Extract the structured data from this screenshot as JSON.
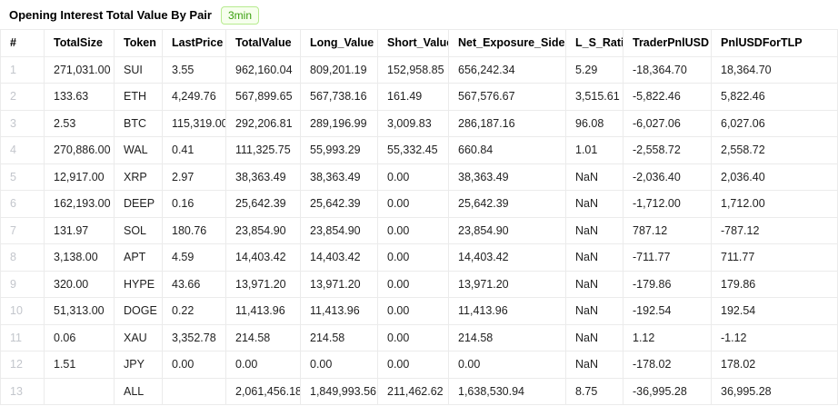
{
  "header": {
    "title": "Opening Interest Total Value By Pair",
    "badge": "3min"
  },
  "colors": {
    "badge_text": "#389e0d",
    "badge_background": "#f6ffed",
    "badge_border": "#b7eb8f",
    "table_border": "#ebebeb",
    "row_number_text": "#c3c6cc"
  },
  "chart_data": {
    "type": "table",
    "title": "Opening Interest Total Value By Pair",
    "interval_badge": "3min",
    "columns": [
      "#",
      "TotalSize",
      "Token",
      "LastPrice",
      "TotalValue",
      "Long_Value",
      "Short_Value",
      "Net_Exposure_Side",
      "L_S_Ratio",
      "TraderPnlUSD",
      "PnlUSDForTLP"
    ],
    "rows": [
      [
        "1",
        "271,031.00",
        "SUI",
        "3.55",
        "962,160.04",
        "809,201.19",
        "152,958.85",
        "656,242.34",
        "5.29",
        "-18,364.70",
        "18,364.70"
      ],
      [
        "2",
        "133.63",
        "ETH",
        "4,249.76",
        "567,899.65",
        "567,738.16",
        "161.49",
        "567,576.67",
        "3,515.61",
        "-5,822.46",
        "5,822.46"
      ],
      [
        "3",
        "2.53",
        "BTC",
        "115,319.00",
        "292,206.81",
        "289,196.99",
        "3,009.83",
        "286,187.16",
        "96.08",
        "-6,027.06",
        "6,027.06"
      ],
      [
        "4",
        "270,886.00",
        "WAL",
        "0.41",
        "111,325.75",
        "55,993.29",
        "55,332.45",
        "660.84",
        "1.01",
        "-2,558.72",
        "2,558.72"
      ],
      [
        "5",
        "12,917.00",
        "XRP",
        "2.97",
        "38,363.49",
        "38,363.49",
        "0.00",
        "38,363.49",
        "NaN",
        "-2,036.40",
        "2,036.40"
      ],
      [
        "6",
        "162,193.00",
        "DEEP",
        "0.16",
        "25,642.39",
        "25,642.39",
        "0.00",
        "25,642.39",
        "NaN",
        "-1,712.00",
        "1,712.00"
      ],
      [
        "7",
        "131.97",
        "SOL",
        "180.76",
        "23,854.90",
        "23,854.90",
        "0.00",
        "23,854.90",
        "NaN",
        "787.12",
        "-787.12"
      ],
      [
        "8",
        "3,138.00",
        "APT",
        "4.59",
        "14,403.42",
        "14,403.42",
        "0.00",
        "14,403.42",
        "NaN",
        "-711.77",
        "711.77"
      ],
      [
        "9",
        "320.00",
        "HYPE",
        "43.66",
        "13,971.20",
        "13,971.20",
        "0.00",
        "13,971.20",
        "NaN",
        "-179.86",
        "179.86"
      ],
      [
        "10",
        "51,313.00",
        "DOGE",
        "0.22",
        "11,413.96",
        "11,413.96",
        "0.00",
        "11,413.96",
        "NaN",
        "-192.54",
        "192.54"
      ],
      [
        "11",
        "0.06",
        "XAU",
        "3,352.78",
        "214.58",
        "214.58",
        "0.00",
        "214.58",
        "NaN",
        "1.12",
        "-1.12"
      ],
      [
        "12",
        "1.51",
        "JPY",
        "0.00",
        "0.00",
        "0.00",
        "0.00",
        "0.00",
        "NaN",
        "-178.02",
        "178.02"
      ],
      [
        "13",
        "",
        "ALL",
        "",
        "2,061,456.18",
        "1,849,993.56",
        "211,462.62",
        "1,638,530.94",
        "8.75",
        "-36,995.28",
        "36,995.28"
      ]
    ]
  }
}
